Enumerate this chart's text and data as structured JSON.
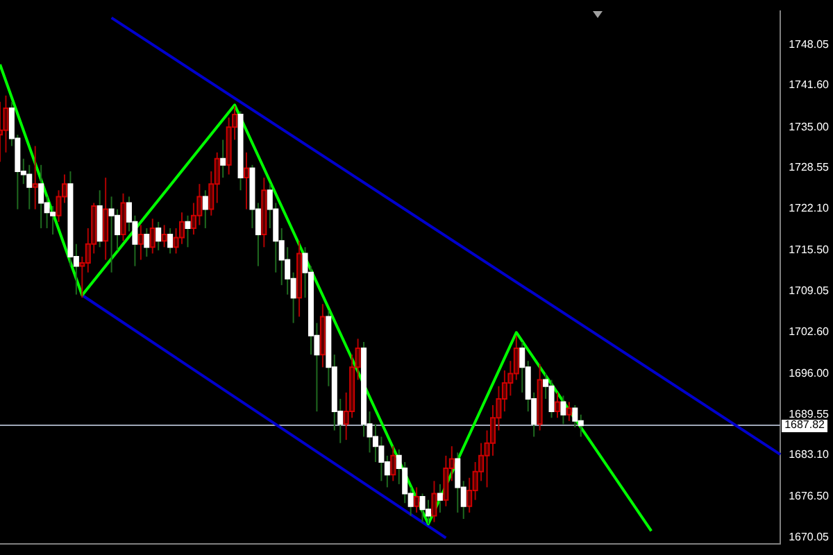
{
  "chart_data": {
    "type": "candlestick",
    "ylim": [
      1669,
      1753.4
    ],
    "tick_labels": "y",
    "grid": false,
    "legend": false,
    "categories": [
      null,
      null,
      null,
      null,
      null,
      null,
      null,
      null,
      null,
      null,
      null,
      null,
      null,
      null,
      null,
      null,
      null,
      null,
      null,
      null,
      null,
      null,
      null,
      null,
      null,
      null,
      null,
      null,
      null,
      null,
      null,
      null,
      null,
      null,
      null,
      null,
      null,
      null,
      null,
      null,
      null,
      null,
      null,
      null,
      null,
      null,
      null,
      null,
      null,
      null,
      null,
      null,
      null,
      null,
      null,
      null,
      null,
      null,
      null,
      null,
      null,
      null,
      null,
      null,
      null,
      null,
      null,
      null,
      null,
      null,
      null,
      null,
      null,
      null,
      null,
      null,
      null,
      null,
      null,
      null,
      null,
      null,
      null,
      null,
      null,
      null,
      null,
      null,
      null,
      null,
      null,
      null,
      null,
      null,
      null,
      null,
      null,
      null,
      null,
      null,
      null,
      null,
      null,
      null,
      null,
      null,
      null,
      null,
      null,
      null,
      null,
      null,
      null,
      null,
      null,
      null,
      null,
      null,
      null,
      null,
      null,
      null,
      null,
      null,
      null,
      null,
      null,
      null,
      null,
      null,
      null,
      null,
      null,
      null
    ],
    "yticks": [
      {
        "value": 1748.05,
        "label": "1748.05"
      },
      {
        "value": 1741.6,
        "label": "1741.60"
      },
      {
        "value": 1735,
        "label": "1735.00"
      },
      {
        "value": 1728.55,
        "label": "1728.55"
      },
      {
        "value": 1722.1,
        "label": "1722.10"
      },
      {
        "value": 1715.5,
        "label": "1715.50"
      },
      {
        "value": 1709.05,
        "label": "1709.05"
      },
      {
        "value": 1702.6,
        "label": "1702.60"
      },
      {
        "value": 1696,
        "label": "1696.00"
      },
      {
        "value": 1689.55,
        "label": "1689.55"
      },
      {
        "value": 1683.1,
        "label": "1683.10"
      },
      {
        "value": 1676.5,
        "label": "1676.50"
      },
      {
        "value": 1670.05,
        "label": "1670.05"
      }
    ],
    "ref_lines": [
      {
        "axis": "y",
        "value": 1687.82,
        "label": "1687.82",
        "color": "#a0a8b8"
      }
    ],
    "series": [
      {
        "type": "candlestick",
        "ohlc": [
          [
            1733.8,
            1739.0,
            1729.5,
            1734.5
          ],
          [
            1734.5,
            1740.0,
            1731.0,
            1738.0
          ],
          [
            1738.0,
            1739.0,
            1732.0,
            1733.2
          ],
          [
            1733.2,
            1733.8,
            1722.0,
            1728.0
          ],
          [
            1728.0,
            1730.0,
            1726.0,
            1727.5
          ],
          [
            1727.5,
            1729.0,
            1722.0,
            1725.5
          ],
          [
            1725.5,
            1732.0,
            1722.0,
            1726.0
          ],
          [
            1726.0,
            1729.0,
            1719.0,
            1723.0
          ],
          [
            1723.0,
            1724.0,
            1719.0,
            1721.5
          ],
          [
            1721.5,
            1722.5,
            1718.0,
            1721.0
          ],
          [
            1721.0,
            1725.0,
            1720.0,
            1724.0
          ],
          [
            1724.0,
            1727.5,
            1723.0,
            1726.0
          ],
          [
            1726.0,
            1728.0,
            1713.0,
            1714.5
          ],
          [
            1714.5,
            1716.5,
            1708.5,
            1713.0
          ],
          [
            1713.0,
            1714.5,
            1708.0,
            1713.5
          ],
          [
            1713.5,
            1719.0,
            1712.0,
            1716.5
          ],
          [
            1716.5,
            1723.0,
            1715.0,
            1722.5
          ],
          [
            1722.5,
            1725.0,
            1716.0,
            1717.0
          ],
          [
            1717.0,
            1727.0,
            1714.0,
            1722.0
          ],
          [
            1722.0,
            1724.0,
            1712.0,
            1721.0
          ],
          [
            1721.0,
            1722.0,
            1715.5,
            1718.0
          ],
          [
            1718.0,
            1724.5,
            1717.0,
            1723.0
          ],
          [
            1723.0,
            1724.0,
            1718.5,
            1720.0
          ],
          [
            1720.0,
            1721.0,
            1713.0,
            1716.5
          ],
          [
            1716.5,
            1719.5,
            1714.0,
            1718.0
          ],
          [
            1718.0,
            1719.0,
            1714.5,
            1716.0
          ],
          [
            1716.0,
            1720.5,
            1715.0,
            1719.0
          ],
          [
            1719.0,
            1720.0,
            1715.5,
            1717.0
          ],
          [
            1717.0,
            1719.5,
            1716.0,
            1718.0
          ],
          [
            1718.0,
            1719.0,
            1715.0,
            1716.0
          ],
          [
            1716.0,
            1719.0,
            1715.0,
            1717.5
          ],
          [
            1717.5,
            1721.5,
            1716.5,
            1720.0
          ],
          [
            1720.0,
            1721.0,
            1716.0,
            1719.0
          ],
          [
            1719.0,
            1723.0,
            1718.0,
            1721.0
          ],
          [
            1721.0,
            1726.0,
            1719.5,
            1724.0
          ],
          [
            1724.0,
            1725.0,
            1719.0,
            1722.0
          ],
          [
            1722.0,
            1728.0,
            1721.0,
            1726.0
          ],
          [
            1726.0,
            1731.0,
            1723.0,
            1730.0
          ],
          [
            1730.0,
            1733.0,
            1727.0,
            1729.0
          ],
          [
            1729.0,
            1736.5,
            1727.5,
            1735.0
          ],
          [
            1735.0,
            1738.3,
            1733.0,
            1737.0
          ],
          [
            1737.0,
            1737.5,
            1725.0,
            1727.0
          ],
          [
            1727.0,
            1731.0,
            1722.0,
            1728.5
          ],
          [
            1728.5,
            1729.0,
            1719.0,
            1722.0
          ],
          [
            1722.0,
            1723.0,
            1713.0,
            1718.0
          ],
          [
            1718.0,
            1727.0,
            1716.0,
            1725.0
          ],
          [
            1725.0,
            1726.0,
            1719.0,
            1722.0
          ],
          [
            1722.0,
            1723.0,
            1712.0,
            1717.0
          ],
          [
            1717.0,
            1719.0,
            1710.0,
            1714.0
          ],
          [
            1714.0,
            1716.0,
            1708.5,
            1711.0
          ],
          [
            1711.0,
            1712.0,
            1704.0,
            1708.0
          ],
          [
            1708.0,
            1717.0,
            1705.0,
            1715.0
          ],
          [
            1715.0,
            1716.0,
            1708.0,
            1712.0
          ],
          [
            1712.0,
            1713.0,
            1699.0,
            1702.0
          ],
          [
            1702.0,
            1704.0,
            1690.0,
            1699.0
          ],
          [
            1699.0,
            1707.0,
            1697.0,
            1705.0
          ],
          [
            1705.0,
            1706.0,
            1694.0,
            1697.0
          ],
          [
            1697.0,
            1699.0,
            1687.0,
            1690.0
          ],
          [
            1690.0,
            1692.0,
            1685.0,
            1688.0
          ],
          [
            1688.0,
            1693.0,
            1685.5,
            1690.0
          ],
          [
            1690.0,
            1699.0,
            1689.0,
            1697.0
          ],
          [
            1697.0,
            1701.5,
            1695.0,
            1700.0
          ],
          [
            1700.0,
            1701.0,
            1686.0,
            1688.0
          ],
          [
            1688.0,
            1690.0,
            1683.5,
            1686.0
          ],
          [
            1686.0,
            1688.0,
            1682.0,
            1684.5
          ],
          [
            1684.5,
            1686.0,
            1679.0,
            1682.0
          ],
          [
            1682.0,
            1683.0,
            1678.0,
            1680.0
          ],
          [
            1680.0,
            1684.5,
            1679.0,
            1683.0
          ],
          [
            1683.0,
            1684.0,
            1678.5,
            1681.0
          ],
          [
            1681.0,
            1682.0,
            1675.5,
            1677.0
          ],
          [
            1677.0,
            1678.0,
            1673.5,
            1675.0
          ],
          [
            1675.0,
            1678.0,
            1674.0,
            1676.5
          ],
          [
            1676.5,
            1677.0,
            1672.5,
            1674.5
          ],
          [
            1674.5,
            1676.0,
            1672.2,
            1673.5
          ],
          [
            1673.5,
            1679.0,
            1672.5,
            1677.0
          ],
          [
            1677.0,
            1678.5,
            1674.0,
            1676.0
          ],
          [
            1676.0,
            1683.0,
            1675.0,
            1681.0
          ],
          [
            1681.0,
            1684.5,
            1679.0,
            1682.5
          ],
          [
            1682.5,
            1683.5,
            1674.0,
            1678.0
          ],
          [
            1678.0,
            1679.0,
            1673.0,
            1675.0
          ],
          [
            1675.0,
            1679.5,
            1674.0,
            1677.5
          ],
          [
            1677.5,
            1682.0,
            1676.0,
            1680.5
          ],
          [
            1680.5,
            1685.0,
            1679.0,
            1683.0
          ],
          [
            1683.0,
            1687.0,
            1678.0,
            1685.0
          ],
          [
            1685.0,
            1691.0,
            1683.0,
            1689.0
          ],
          [
            1689.0,
            1694.0,
            1687.0,
            1692.0
          ],
          [
            1692.0,
            1696.5,
            1690.0,
            1694.5
          ],
          [
            1694.5,
            1698.0,
            1692.5,
            1696.0
          ],
          [
            1696.0,
            1702.0,
            1695.0,
            1700.0
          ],
          [
            1700.0,
            1701.0,
            1693.0,
            1697.0
          ],
          [
            1697.0,
            1698.0,
            1690.0,
            1692.0
          ],
          [
            1692.0,
            1693.0,
            1686.0,
            1688.0
          ],
          [
            1688.0,
            1697.5,
            1687.0,
            1695.0
          ],
          [
            1695.0,
            1696.0,
            1692.0,
            1694.0
          ],
          [
            1694.0,
            1695.0,
            1689.0,
            1690.0
          ],
          [
            1690.0,
            1693.0,
            1689.0,
            1691.5
          ],
          [
            1691.5,
            1692.5,
            1688.0,
            1689.5
          ],
          [
            1689.5,
            1691.5,
            1688.5,
            1690.5
          ],
          [
            1690.5,
            1691.0,
            1687.5,
            1688.5
          ],
          [
            1688.5,
            1689.5,
            1686.0,
            1687.8
          ],
          null,
          null,
          null,
          null,
          null,
          null,
          null,
          null,
          null,
          null,
          null,
          null,
          null,
          null,
          null,
          null,
          null,
          null,
          null,
          null,
          null,
          null,
          null,
          null,
          null,
          null,
          null,
          null,
          null,
          null,
          null,
          null,
          null,
          null
        ]
      },
      {
        "type": "line",
        "color": "#00ff00",
        "values": [
          1744.9,
          null,
          null,
          null,
          null,
          null,
          null,
          null,
          null,
          null,
          null,
          null,
          null,
          null,
          1708.4,
          null,
          null,
          null,
          null,
          null,
          null,
          null,
          null,
          null,
          null,
          null,
          null,
          null,
          null,
          null,
          null,
          null,
          null,
          null,
          null,
          null,
          null,
          null,
          null,
          null,
          1738.5,
          null,
          null,
          null,
          null,
          null,
          null,
          null,
          null,
          null,
          null,
          null,
          null,
          null,
          null,
          null,
          null,
          null,
          null,
          null,
          null,
          null,
          null,
          null,
          null,
          null,
          null,
          null,
          null,
          null,
          null,
          null,
          null,
          1672.2,
          null,
          null,
          null,
          null,
          null,
          null,
          null,
          null,
          null,
          null,
          null,
          null,
          null,
          null,
          1702.5,
          null,
          null,
          null,
          null,
          null,
          null,
          null,
          null,
          null,
          null,
          null,
          null,
          null,
          null,
          null,
          null,
          null,
          null,
          null,
          null,
          null,
          null,
          1671.1,
          null,
          null,
          null,
          null,
          null,
          null,
          null,
          null,
          null,
          null,
          null,
          null,
          null,
          null,
          null,
          null,
          null,
          null,
          null,
          null,
          null,
          null
        ]
      },
      {
        "type": "line",
        "color": "#0000cc",
        "values": [
          null,
          null,
          null,
          null,
          null,
          null,
          null,
          null,
          null,
          null,
          null,
          null,
          null,
          null,
          null,
          null,
          null,
          null,
          null,
          1752.3,
          null,
          null,
          null,
          null,
          null,
          null,
          null,
          null,
          null,
          null,
          null,
          null,
          null,
          null,
          null,
          null,
          null,
          null,
          null,
          null,
          null,
          null,
          null,
          null,
          null,
          null,
          null,
          null,
          null,
          null,
          null,
          null,
          null,
          null,
          null,
          null,
          null,
          null,
          null,
          null,
          null,
          null,
          null,
          null,
          null,
          null,
          null,
          null,
          null,
          null,
          null,
          null,
          null,
          null,
          null,
          null,
          null,
          null,
          null,
          null,
          null,
          null,
          null,
          null,
          null,
          null,
          null,
          null,
          null,
          null,
          null,
          null,
          null,
          null,
          null,
          null,
          null,
          null,
          null,
          null,
          null,
          null,
          null,
          null,
          null,
          null,
          null,
          null,
          null,
          null,
          null,
          null,
          null,
          null,
          null,
          null,
          null,
          null,
          null,
          null,
          null,
          null,
          null,
          null,
          null,
          null,
          null,
          null,
          null,
          null,
          null,
          null,
          null,
          1683.2
        ]
      },
      {
        "type": "line",
        "color": "#0000cc",
        "values": [
          null,
          null,
          null,
          null,
          null,
          null,
          null,
          null,
          null,
          null,
          null,
          null,
          null,
          null,
          1708.4,
          null,
          null,
          null,
          null,
          null,
          null,
          null,
          null,
          null,
          null,
          null,
          null,
          null,
          null,
          null,
          null,
          null,
          null,
          null,
          null,
          null,
          null,
          null,
          null,
          null,
          null,
          null,
          null,
          null,
          null,
          null,
          null,
          null,
          null,
          null,
          null,
          null,
          null,
          null,
          null,
          null,
          null,
          null,
          null,
          null,
          null,
          null,
          null,
          null,
          null,
          null,
          null,
          null,
          null,
          null,
          null,
          null,
          null,
          null,
          null,
          null,
          1670.0,
          null,
          null,
          null,
          null,
          null,
          null,
          null,
          null,
          null,
          null,
          null,
          null,
          null,
          null,
          null,
          null,
          null,
          null,
          null,
          null,
          null,
          null,
          null,
          null,
          null,
          null,
          null,
          null,
          null,
          null,
          null,
          null,
          null,
          null,
          null,
          null,
          null,
          null,
          null,
          null,
          null,
          null,
          null,
          null,
          null,
          null,
          null,
          null,
          null,
          null,
          null,
          null,
          null,
          null,
          null,
          null,
          null
        ]
      }
    ]
  }
}
